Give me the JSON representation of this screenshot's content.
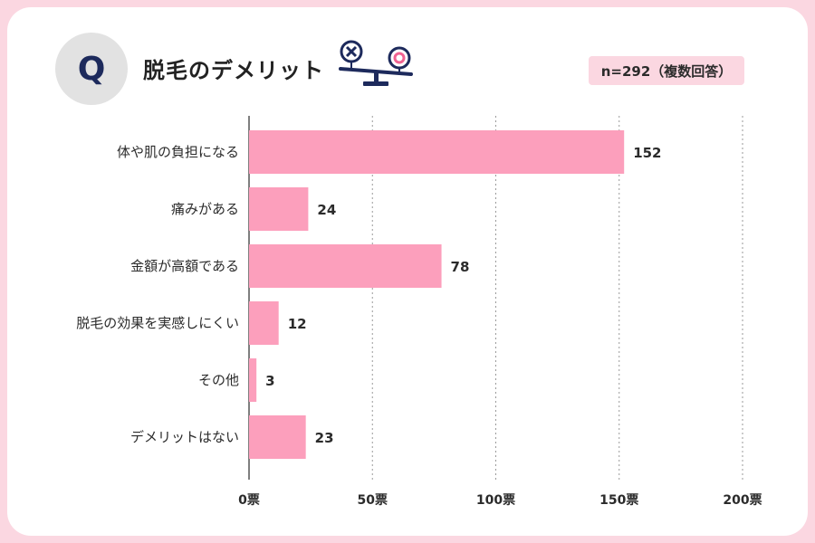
{
  "header": {
    "q_mark": "Q",
    "title": "脱毛のデメリット",
    "badge": "n=292（複数回答）",
    "icon": "balance-scale-icon"
  },
  "colors": {
    "bar": "#fc9fbc",
    "frame": "#fbd7e1",
    "q_circle": "#e2e2e2",
    "q_text": "#1d2a5c",
    "icon_navy": "#1d2a5c",
    "icon_pink": "#f06292"
  },
  "chart_data": {
    "type": "bar",
    "orientation": "horizontal",
    "categories": [
      "体や肌の負担になる",
      "痛みがある",
      "金額が高額である",
      "脱毛の効果を実感しにくい",
      "その他",
      "デメリットはない"
    ],
    "values": [
      152,
      24,
      78,
      12,
      3,
      23
    ],
    "xlim": [
      0,
      200
    ],
    "xticks": [
      0,
      50,
      100,
      150,
      200
    ],
    "xtick_labels": [
      "0票",
      "50票",
      "100票",
      "150票",
      "200票"
    ],
    "grid": true,
    "grid_style": "dashed-vertical"
  }
}
